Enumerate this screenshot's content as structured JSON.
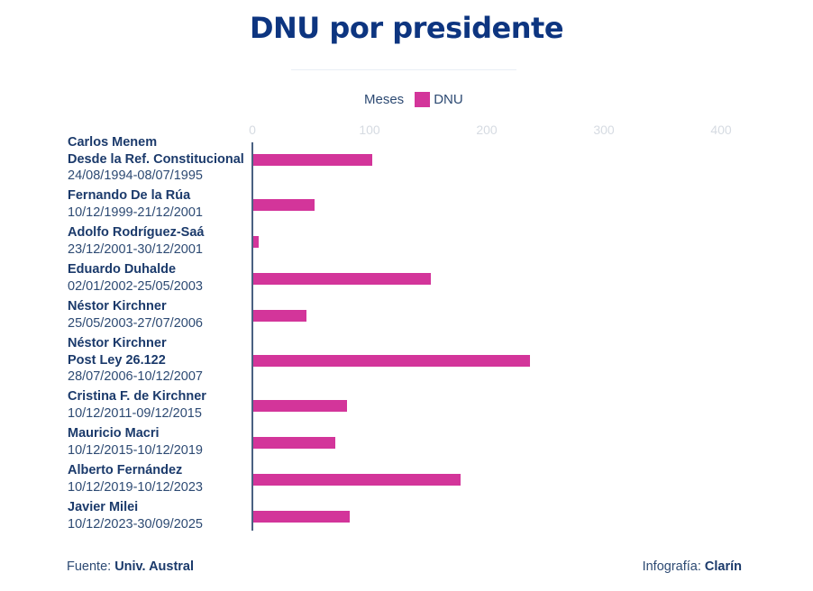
{
  "title": "DNU por presidente",
  "legend": {
    "meses_label": "Meses",
    "dnu_label": "DNU"
  },
  "colors": {
    "bar": "#d3359a",
    "title": "#0d3580",
    "axis": "#4a6182"
  },
  "footer": {
    "source_prefix": "Fuente:",
    "source_name": "Univ. Austral",
    "credit_prefix": "Infografía:",
    "credit_name": "Clarín"
  },
  "chart_data": {
    "type": "bar",
    "orientation": "horizontal",
    "title": "DNU por presidente",
    "xlabel": "",
    "ylabel": "",
    "xlim": [
      0,
      400
    ],
    "ticks": [
      "0",
      "100",
      "200",
      "300",
      "400"
    ],
    "tick_values": [
      0,
      100,
      200,
      300,
      400
    ],
    "grid": false,
    "legend": [
      "Meses",
      "DNU"
    ],
    "legend_position": "top-center",
    "categories": [
      {
        "name": "Carlos Menem",
        "subtitle": "Desde la Ref. Constitucional",
        "dates": "24/08/1994-08/07/1995"
      },
      {
        "name": "Fernando De la Rúa",
        "subtitle": "",
        "dates": "10/12/1999-21/12/2001"
      },
      {
        "name": "Adolfo Rodríguez-Saá",
        "subtitle": "",
        "dates": "23/12/2001-30/12/2001"
      },
      {
        "name": "Eduardo Duhalde",
        "subtitle": "",
        "dates": "02/01/2002-25/05/2003"
      },
      {
        "name": "Néstor Kirchner",
        "subtitle": "",
        "dates": "25/05/2003-27/07/2006"
      },
      {
        "name": "Néstor Kirchner",
        "subtitle": "Post Ley 26.122",
        "dates": "28/07/2006-10/12/2007"
      },
      {
        "name": "Cristina F. de Kirchner",
        "subtitle": "",
        "dates": "10/12/2011-09/12/2015"
      },
      {
        "name": "Mauricio Macri",
        "subtitle": "",
        "dates": "10/12/2015-10/12/2019"
      },
      {
        "name": "Alberto Fernández",
        "subtitle": "",
        "dates": "10/12/2019-10/12/2023"
      },
      {
        "name": "Javier Milei",
        "subtitle": "",
        "dates": "10/12/2023-30/09/2025"
      }
    ],
    "series": [
      {
        "name": "DNU",
        "values": [
          102,
          53,
          5,
          152,
          46,
          237,
          81,
          71,
          178,
          83
        ]
      }
    ]
  }
}
